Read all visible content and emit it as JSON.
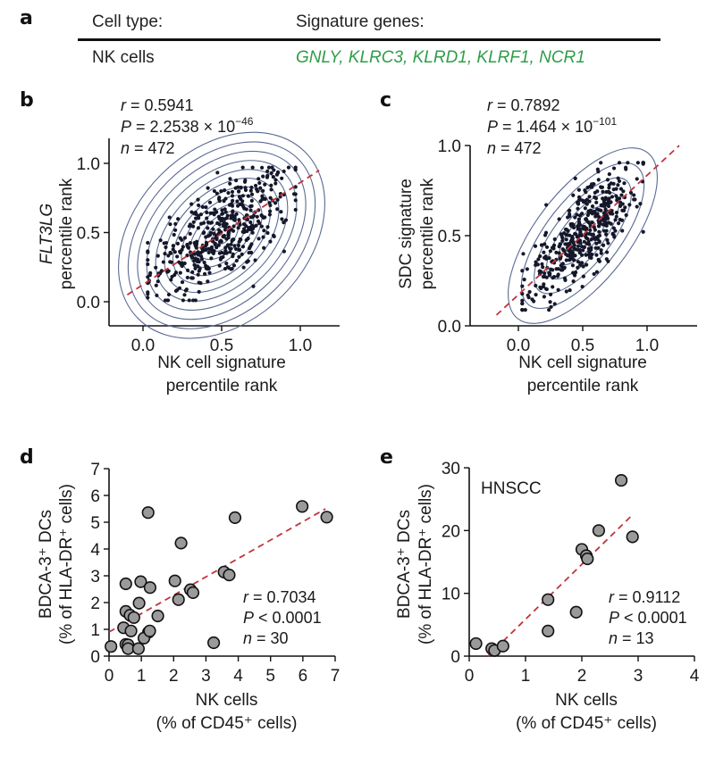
{
  "panel_letters": {
    "a": "a",
    "b": "b",
    "c": "c",
    "d": "d",
    "e": "e"
  },
  "table": {
    "headers": [
      "Cell type:",
      "Signature genes:"
    ],
    "rows": [
      {
        "cell_type": "NK cells",
        "genes": "GNLY, KLRC3, KLRD1, KLRF1, NCR1"
      }
    ],
    "gene_color": "#2e9e48"
  },
  "colors": {
    "contour": "#5a6a92",
    "point": "#15172a",
    "regression": "#c0343e",
    "marker_fill": "#9a9a9a",
    "marker_stroke": "#111111"
  },
  "chart_data": [
    {
      "id": "b",
      "type": "scatter",
      "title": "",
      "xlabel": [
        "NK cell signature",
        "percentile rank"
      ],
      "ylabel": [
        "FLT3LG",
        "percentile rank"
      ],
      "ylabel_italic_first_line": true,
      "xlim": [
        -0.22,
        1.2
      ],
      "ylim": [
        -0.17,
        1.17
      ],
      "xticks": [
        0.0,
        0.5,
        1.0
      ],
      "xtick_labels": [
        "0.0",
        "0.5",
        "1.0"
      ],
      "yticks": [
        0.0,
        0.5,
        1.0
      ],
      "ytick_labels": [
        "0.0",
        "0.5",
        "1.0"
      ],
      "stats": {
        "r": "r = 0.5941",
        "p": "P = 2.2538 × 10",
        "p_exp": "−46",
        "n": "n = 472"
      },
      "n_points": 472,
      "correlation": 0.5941,
      "regression": {
        "x": [
          -0.1,
          1.12
        ],
        "y": [
          0.05,
          0.95
        ]
      },
      "density_contours": true,
      "contour_levels": 12,
      "grid": false
    },
    {
      "id": "c",
      "type": "scatter",
      "title": "",
      "xlabel": [
        "NK cell signature",
        "percentile rank"
      ],
      "ylabel": [
        "SDC signature",
        "percentile rank"
      ],
      "ylabel_italic_first_line": false,
      "xlim": [
        -0.37,
        1.37
      ],
      "ylim": [
        0.0,
        1.0
      ],
      "xticks": [
        0.0,
        0.5,
        1.0
      ],
      "xtick_labels": [
        "0.0",
        "0.5",
        "1.0"
      ],
      "yticks": [
        0.0,
        0.5,
        1.0
      ],
      "ytick_labels": [
        "0.0",
        "0.5",
        "1.0"
      ],
      "stats": {
        "r": "r = 0.7892",
        "p": "P = 1.464 × 10",
        "p_exp": "−101",
        "n": "n = 472"
      },
      "n_points": 472,
      "correlation": 0.7892,
      "regression": {
        "x": [
          -0.17,
          1.25
        ],
        "y": [
          0.06,
          1.0
        ]
      },
      "density_contours": true,
      "contour_levels": 6,
      "grid": false
    },
    {
      "id": "d",
      "type": "scatter",
      "title": "",
      "xlabel": [
        "NK cells",
        "(% of CD45⁺ cells)"
      ],
      "ylabel": [
        "BDCA-3⁺ DCs",
        "(% of HLA-DR⁺ cells)"
      ],
      "xlim": [
        0,
        7
      ],
      "ylim": [
        0,
        7
      ],
      "xticks": [
        0,
        1,
        2,
        3,
        4,
        5,
        6,
        7
      ],
      "xtick_labels": [
        "0",
        "1",
        "2",
        "3",
        "4",
        "5",
        "6",
        "7"
      ],
      "yticks": [
        0,
        1,
        2,
        3,
        4,
        5,
        6,
        7
      ],
      "ytick_labels": [
        "0",
        "1",
        "2",
        "3",
        "4",
        "5",
        "6",
        "7"
      ],
      "stats": {
        "r": "r = 0.7034",
        "p": "P < 0.0001",
        "n": "n = 30"
      },
      "annotation": "",
      "x": [
        0.06,
        0.52,
        0.98,
        1.27,
        1.21,
        0.93,
        0.52,
        0.65,
        0.77,
        1.51,
        0.45,
        0.68,
        1.22,
        1.08,
        0.52,
        0.59,
        0.59,
        0.91,
        1.26,
        2.04,
        2.15,
        2.23,
        2.52,
        2.6,
        3.24,
        3.56,
        3.72,
        3.9,
        5.98,
        6.74
      ],
      "y": [
        0.36,
        2.7,
        2.78,
        2.56,
        5.36,
        1.98,
        1.67,
        1.53,
        1.44,
        1.5,
        1.06,
        0.94,
        0.89,
        0.67,
        0.44,
        0.42,
        0.28,
        0.28,
        0.94,
        2.81,
        2.11,
        4.22,
        2.48,
        2.37,
        0.5,
        3.14,
        3.03,
        5.17,
        5.59,
        5.19
      ],
      "regression": {
        "x": [
          0.0,
          6.7
        ],
        "y": [
          0.9,
          5.5
        ]
      },
      "grid": false
    },
    {
      "id": "e",
      "type": "scatter",
      "title": "",
      "xlabel": [
        "NK cells",
        "(% of CD45⁺ cells)"
      ],
      "ylabel": [
        "BDCA-3⁺ DCs",
        "(% of HLA-DR⁺ cells)"
      ],
      "xlim": [
        0,
        4
      ],
      "ylim": [
        0,
        30
      ],
      "xticks": [
        0,
        1,
        2,
        3,
        4
      ],
      "xtick_labels": [
        "0",
        "1",
        "2",
        "3",
        "4"
      ],
      "yticks": [
        0,
        10,
        20,
        30
      ],
      "ytick_labels": [
        "0",
        "10",
        "20",
        "30"
      ],
      "stats": {
        "r": "r = 0.9112",
        "p": "P < 0.0001",
        "n": "n = 13"
      },
      "annotation": "HNSCC",
      "x": [
        0.12,
        0.4,
        0.45,
        0.6,
        1.4,
        1.4,
        1.9,
        2.0,
        2.08,
        2.1,
        2.3,
        2.7,
        2.9
      ],
      "y": [
        2.0,
        1.2,
        0.9,
        1.6,
        9.0,
        4.0,
        7.0,
        17.0,
        16.0,
        15.5,
        20.0,
        28.0,
        19.0
      ],
      "regression": {
        "x": [
          0.33,
          2.9
        ],
        "y": [
          0.0,
          22.5
        ]
      },
      "grid": false
    }
  ]
}
